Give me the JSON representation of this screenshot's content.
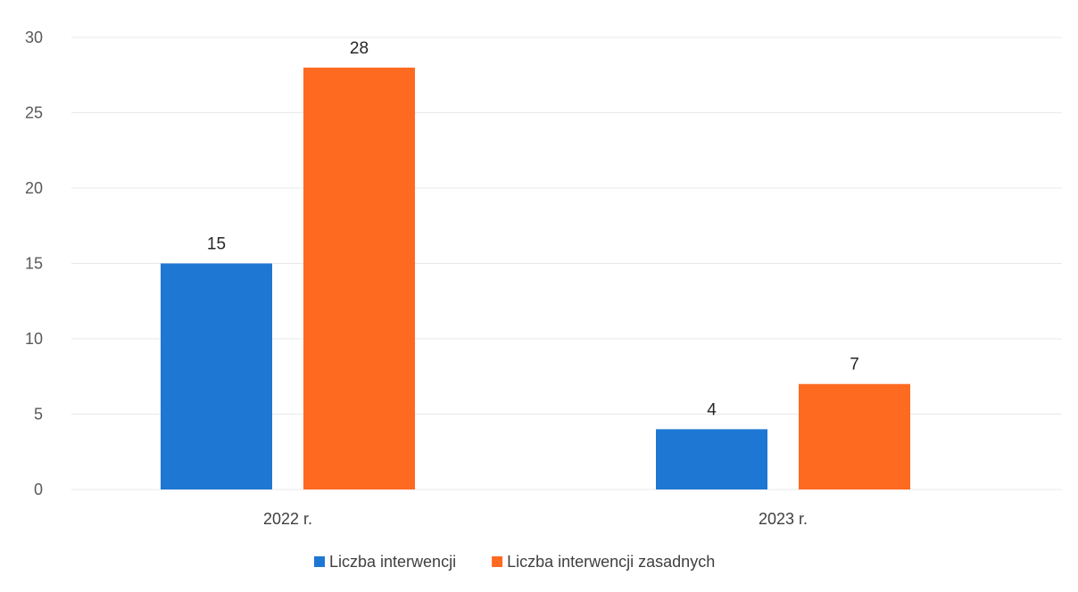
{
  "chart_data": {
    "type": "bar",
    "categories": [
      "2022 r.",
      "2023 r."
    ],
    "series": [
      {
        "name": "Liczba interwencji",
        "values": [
          15,
          4
        ],
        "color": "#1f77d4"
      },
      {
        "name": "Liczba interwencji zasadnych",
        "values": [
          28,
          7
        ],
        "color": "#ff6a21"
      }
    ],
    "ylim": [
      0,
      30
    ],
    "yticks": [
      0,
      5,
      10,
      15,
      20,
      25,
      30
    ],
    "grid": true,
    "legend": "bottom"
  }
}
